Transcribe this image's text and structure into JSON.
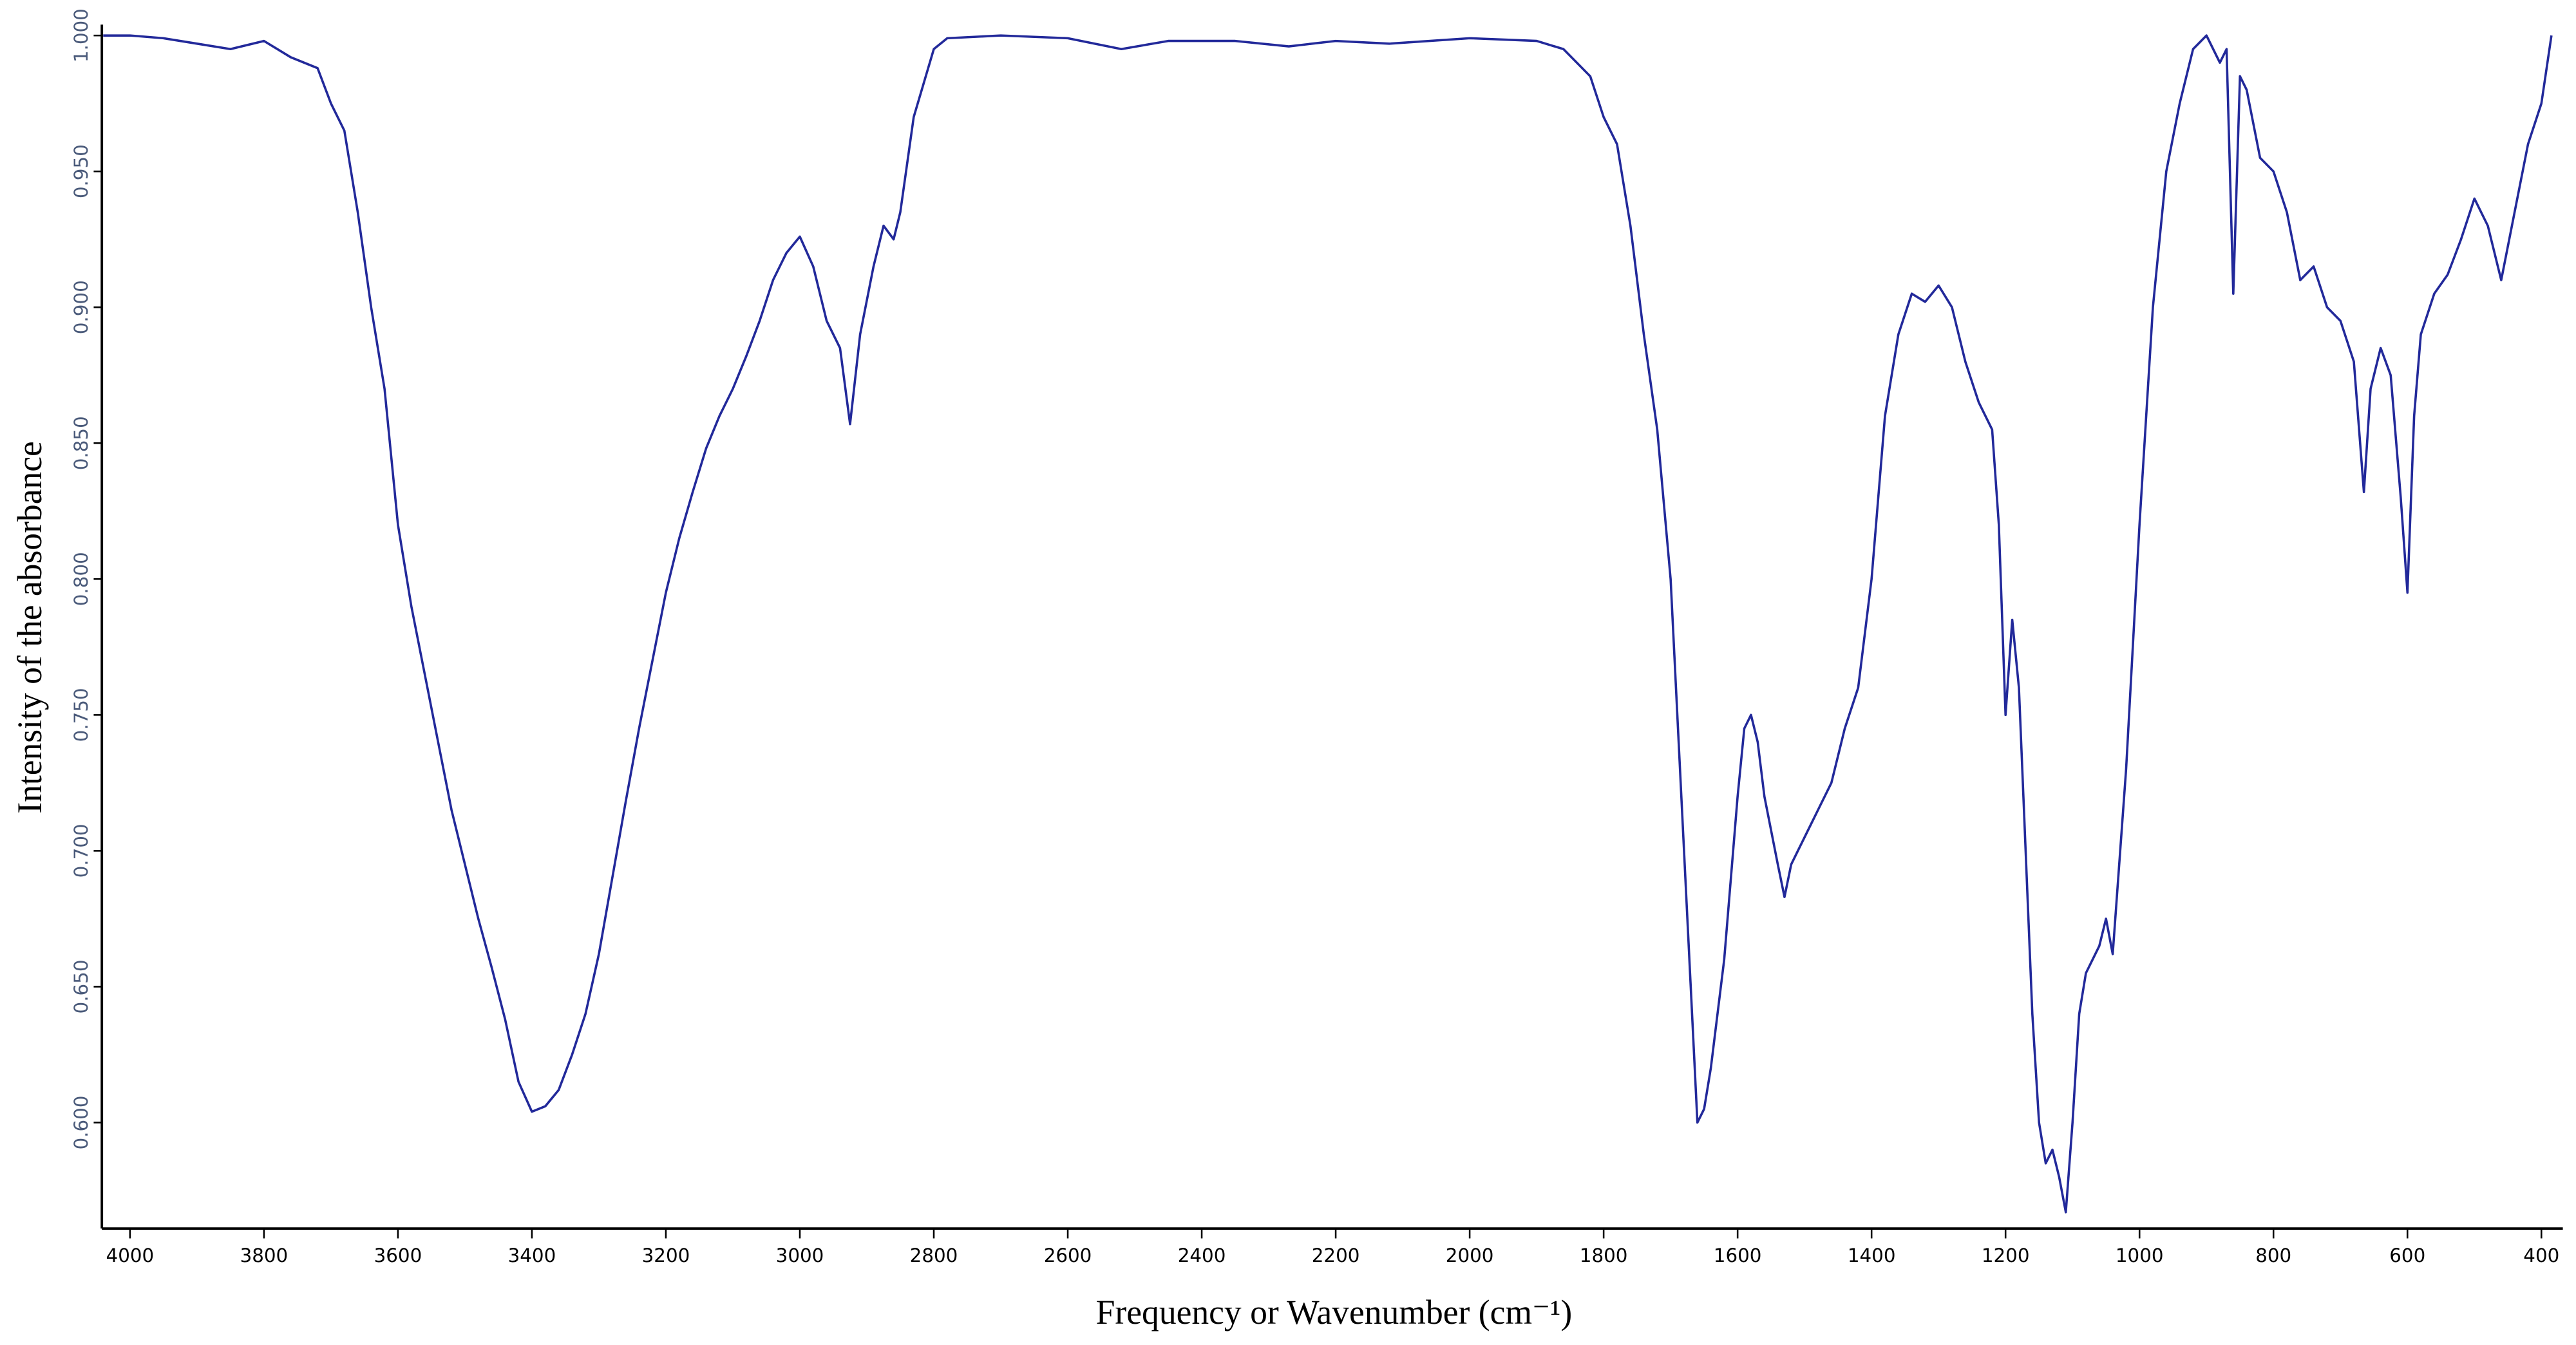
{
  "chart_data": {
    "type": "line",
    "xlabel": "Frequency or Wavenumber (cm⁻¹)",
    "ylabel": "Intensity of the absorbance",
    "color": "#22299a",
    "xlim": [
      4042,
      368
    ],
    "ylim": [
      0.561,
      1.004
    ],
    "xticks": [
      4000,
      3800,
      3600,
      3400,
      3200,
      3000,
      2800,
      2600,
      2400,
      2200,
      2000,
      1800,
      1600,
      1400,
      1200,
      1000,
      800,
      600,
      400
    ],
    "yticks": [
      {
        "value": 1.0,
        "label": "1.000"
      },
      {
        "value": 0.95,
        "label": "0.950"
      },
      {
        "value": 0.9,
        "label": "0.900"
      },
      {
        "value": 0.85,
        "label": "0.850"
      },
      {
        "value": 0.8,
        "label": "0.800"
      },
      {
        "value": 0.75,
        "label": "0.750"
      },
      {
        "value": 0.7,
        "label": "0.700"
      },
      {
        "value": 0.65,
        "label": "0.650"
      },
      {
        "value": 0.6,
        "label": "0.600"
      }
    ],
    "x": [
      4040,
      4000,
      3950,
      3900,
      3850,
      3800,
      3760,
      3720,
      3700,
      3680,
      3660,
      3640,
      3620,
      3600,
      3580,
      3560,
      3540,
      3520,
      3500,
      3480,
      3460,
      3440,
      3420,
      3400,
      3380,
      3360,
      3340,
      3320,
      3300,
      3280,
      3260,
      3240,
      3220,
      3200,
      3180,
      3160,
      3140,
      3120,
      3100,
      3080,
      3060,
      3040,
      3020,
      3000,
      2980,
      2960,
      2940,
      2925,
      2910,
      2890,
      2875,
      2860,
      2850,
      2830,
      2800,
      2780,
      2700,
      2600,
      2520,
      2450,
      2350,
      2270,
      2200,
      2120,
      2000,
      1900,
      1860,
      1820,
      1800,
      1780,
      1760,
      1740,
      1720,
      1700,
      1680,
      1670,
      1660,
      1650,
      1640,
      1620,
      1600,
      1590,
      1580,
      1570,
      1560,
      1540,
      1530,
      1520,
      1500,
      1480,
      1460,
      1440,
      1420,
      1400,
      1380,
      1360,
      1340,
      1320,
      1300,
      1280,
      1260,
      1240,
      1220,
      1210,
      1200,
      1190,
      1180,
      1170,
      1160,
      1150,
      1140,
      1130,
      1120,
      1110,
      1100,
      1090,
      1080,
      1060,
      1050,
      1040,
      1020,
      1000,
      980,
      960,
      940,
      920,
      900,
      880,
      870,
      860,
      850,
      840,
      820,
      800,
      780,
      760,
      740,
      720,
      700,
      680,
      665,
      655,
      640,
      625,
      610,
      600,
      590,
      580,
      560,
      540,
      520,
      500,
      480,
      460,
      440,
      420,
      400,
      385
    ],
    "values": [
      1.0,
      1.0,
      0.999,
      0.997,
      0.995,
      0.998,
      0.992,
      0.988,
      0.975,
      0.965,
      0.935,
      0.9,
      0.87,
      0.82,
      0.79,
      0.765,
      0.74,
      0.715,
      0.695,
      0.675,
      0.657,
      0.638,
      0.615,
      0.604,
      0.606,
      0.612,
      0.625,
      0.64,
      0.662,
      0.69,
      0.718,
      0.745,
      0.77,
      0.795,
      0.815,
      0.832,
      0.848,
      0.86,
      0.87,
      0.882,
      0.895,
      0.91,
      0.92,
      0.926,
      0.915,
      0.895,
      0.885,
      0.857,
      0.89,
      0.915,
      0.93,
      0.925,
      0.935,
      0.97,
      0.995,
      0.999,
      1.0,
      0.999,
      0.995,
      0.998,
      0.998,
      0.996,
      0.998,
      0.997,
      0.999,
      0.998,
      0.995,
      0.985,
      0.97,
      0.96,
      0.93,
      0.89,
      0.855,
      0.8,
      0.7,
      0.65,
      0.6,
      0.605,
      0.62,
      0.66,
      0.72,
      0.745,
      0.75,
      0.74,
      0.72,
      0.695,
      0.683,
      0.695,
      0.705,
      0.715,
      0.725,
      0.745,
      0.76,
      0.8,
      0.86,
      0.89,
      0.905,
      0.902,
      0.908,
      0.9,
      0.88,
      0.865,
      0.855,
      0.82,
      0.75,
      0.785,
      0.76,
      0.7,
      0.64,
      0.6,
      0.585,
      0.59,
      0.58,
      0.567,
      0.6,
      0.64,
      0.655,
      0.665,
      0.675,
      0.662,
      0.73,
      0.82,
      0.9,
      0.95,
      0.975,
      0.995,
      1.0,
      0.99,
      0.995,
      0.905,
      0.985,
      0.98,
      0.955,
      0.95,
      0.935,
      0.91,
      0.915,
      0.9,
      0.895,
      0.88,
      0.832,
      0.87,
      0.885,
      0.875,
      0.83,
      0.795,
      0.86,
      0.89,
      0.905,
      0.912,
      0.925,
      0.94,
      0.93,
      0.91,
      0.935,
      0.96,
      0.975,
      1.0
    ]
  }
}
